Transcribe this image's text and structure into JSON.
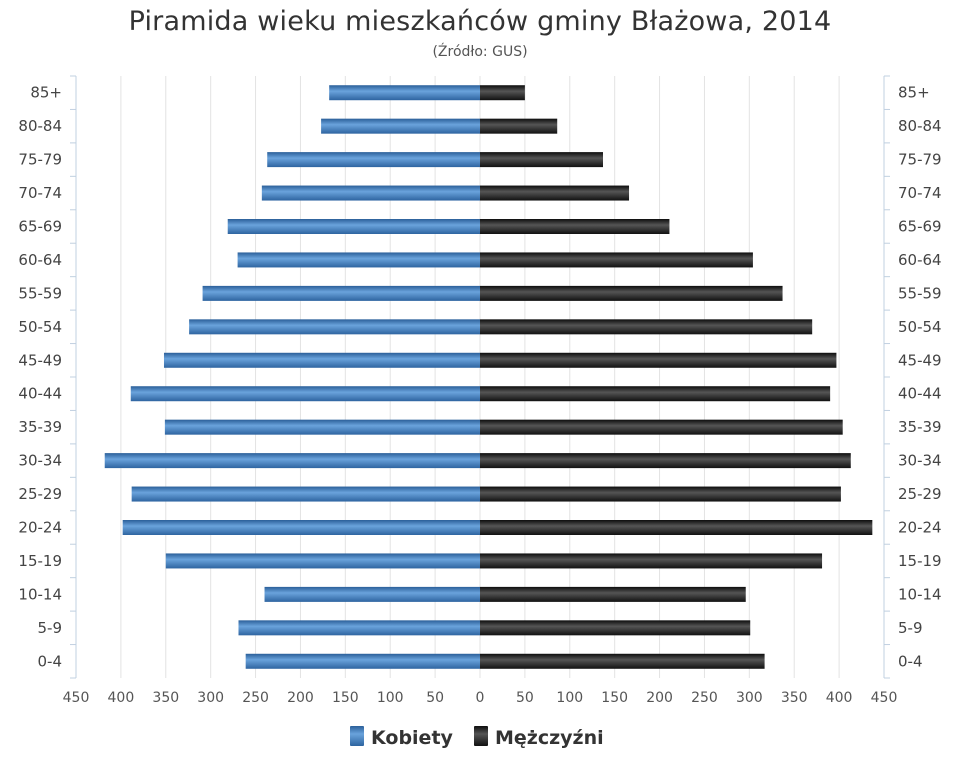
{
  "chart_data": {
    "type": "bar",
    "orientation": "horizontal",
    "title": "Piramida wieku mieszkańców gminy Błażowa, 2014",
    "subtitle": "(Źródło: GUS)",
    "categories": [
      "85+",
      "80-84",
      "75-79",
      "70-74",
      "65-69",
      "60-64",
      "55-59",
      "50-54",
      "45-49",
      "40-44",
      "35-39",
      "30-34",
      "25-29",
      "20-24",
      "15-19",
      "10-14",
      "5-9",
      "0-4"
    ],
    "series": [
      {
        "name": "Kobiety",
        "color": "#3d7bbd",
        "values": [
          168,
          177,
          237,
          243,
          281,
          270,
          309,
          324,
          352,
          389,
          351,
          418,
          388,
          398,
          350,
          240,
          269,
          261
        ]
      },
      {
        "name": "Mężczyźni",
        "color": "#1a1a1a",
        "values": [
          50,
          86,
          137,
          166,
          211,
          304,
          337,
          370,
          397,
          390,
          404,
          413,
          402,
          437,
          381,
          296,
          301,
          317
        ]
      }
    ],
    "x_ticks": [
      "450",
      "400",
      "350",
      "300",
      "250",
      "200",
      "150",
      "100",
      "50",
      "0",
      "50",
      "100",
      "150",
      "200",
      "250",
      "300",
      "350",
      "400",
      "450"
    ],
    "xlim": [
      -450,
      450
    ],
    "grid": true,
    "legend_position": "bottom-center"
  }
}
